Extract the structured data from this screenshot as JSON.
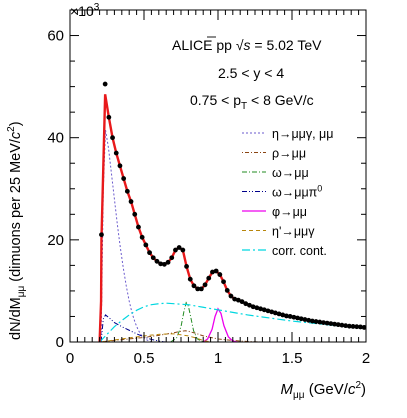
{
  "chart_data": {
    "type": "line",
    "annotations": {
      "experiment": "ALICE pp",
      "energy_prefix": "√",
      "energy_var": "s",
      "energy_value": " = 5.02 TeV",
      "rapidity": "2.5 < y < 4",
      "pt_prefix": "0.75 < p",
      "pt_sub": "T",
      "pt_suffix": " < 8 GeV/c"
    },
    "multiplier_label": "×10",
    "multiplier_exp": "3",
    "xlabel": {
      "main": "M",
      "sub": "μμ",
      "unit_pre": " (GeV/",
      "unit_c": "c",
      "unit_exp": "2",
      "unit_post": ")"
    },
    "ylabel": {
      "text": "dN/dM",
      "sub": "μμ",
      "unit_pre": " (dimuons per 25 MeV/",
      "unit_c": "c",
      "unit_exp": "2",
      "unit_post": ")"
    },
    "xlim": [
      0,
      2
    ],
    "ylim": [
      0,
      65
    ],
    "x_ticks": [
      0,
      0.5,
      1,
      1.5,
      2
    ],
    "x_tick_labels": [
      "0",
      "0.5",
      "1",
      "1.5",
      "2"
    ],
    "y_ticks": [
      0,
      20,
      40,
      60
    ],
    "y_tick_labels": [
      "0",
      "20",
      "40",
      "60"
    ],
    "data_points": {
      "x": [
        0.2125,
        0.2375,
        0.2625,
        0.2875,
        0.3125,
        0.3375,
        0.3625,
        0.3875,
        0.4125,
        0.4375,
        0.4625,
        0.4875,
        0.5125,
        0.5375,
        0.5625,
        0.5875,
        0.6125,
        0.6375,
        0.6625,
        0.6875,
        0.7125,
        0.7375,
        0.7625,
        0.7875,
        0.8125,
        0.8375,
        0.8625,
        0.8875,
        0.9125,
        0.9375,
        0.9625,
        0.9875,
        1.0125,
        1.0375,
        1.0625,
        1.0875,
        1.1125,
        1.1375,
        1.1625,
        1.1875,
        1.2125,
        1.2375,
        1.2625,
        1.2875,
        1.3125,
        1.3375,
        1.3625,
        1.3875,
        1.4125,
        1.4375,
        1.4625,
        1.4875,
        1.5125,
        1.5375,
        1.5625,
        1.5875,
        1.6125,
        1.6375,
        1.6625,
        1.6875,
        1.7125,
        1.7375,
        1.7625,
        1.7875,
        1.8125,
        1.8375,
        1.8625,
        1.8875,
        1.9125,
        1.9375,
        1.9625,
        1.9875
      ],
      "y": [
        21,
        50.5,
        44,
        40,
        37,
        34.5,
        32,
        29.5,
        27.5,
        25,
        22.5,
        20.5,
        19,
        17.5,
        16.5,
        15.8,
        15.3,
        15.2,
        15.6,
        16.5,
        18,
        18.5,
        18,
        14.8,
        12.3,
        11.0,
        10.4,
        10.4,
        11.2,
        12.5,
        13.7,
        13.9,
        13.2,
        11.8,
        10.1,
        9.0,
        8.4,
        8.2,
        7.9,
        7.5,
        7.2,
        6.9,
        6.7,
        6.5,
        6.3,
        6.1,
        5.9,
        5.7,
        5.5,
        5.3,
        5.1,
        5.0,
        4.85,
        4.7,
        4.55,
        4.4,
        4.25,
        4.1,
        4.0,
        3.9,
        3.8,
        3.7,
        3.6,
        3.5,
        3.4,
        3.3,
        3.2,
        3.1,
        3.05,
        3.0,
        2.95,
        2.85
      ],
      "color": "#000000"
    },
    "series": [
      {
        "key": "fit",
        "color": "#e8191b",
        "dash": "",
        "width": 2.4,
        "x": [
          0.2,
          0.21,
          0.2125,
          0.2375,
          0.2625,
          0.2875,
          0.3125,
          0.3375,
          0.3625,
          0.3875,
          0.4125,
          0.4375,
          0.4625,
          0.4875,
          0.5125,
          0.5375,
          0.5625,
          0.5875,
          0.6125,
          0.6375,
          0.6625,
          0.6875,
          0.7125,
          0.7375,
          0.7625,
          0.7875,
          0.8125,
          0.8375,
          0.8625,
          0.8875,
          0.9125,
          0.9375,
          0.9625,
          0.9875,
          1.0125,
          1.0375,
          1.0625,
          1.0875,
          1.1125,
          1.1375,
          1.1625,
          1.1875,
          1.2125,
          1.2375,
          1.2625,
          1.2875,
          1.3125,
          1.3375,
          1.3625,
          1.3875,
          1.4125,
          1.4375,
          1.4625,
          1.4875,
          1.5125,
          1.5375,
          1.5625,
          1.5875,
          1.6125,
          1.6375,
          1.6625,
          1.6875,
          1.7125,
          1.7375,
          1.7625,
          1.7875,
          1.8125,
          1.8375,
          1.8625,
          1.8875,
          1.9125,
          1.9375,
          1.9625,
          1.9875
        ],
        "y": [
          0,
          8,
          20,
          48.5,
          44,
          40,
          37,
          34.5,
          32,
          29.5,
          27.5,
          25,
          22.5,
          20.5,
          19,
          17.5,
          16.5,
          15.8,
          15.3,
          15.2,
          15.6,
          16.5,
          18,
          18.5,
          18,
          14.8,
          12.3,
          11.0,
          10.4,
          10.4,
          11.2,
          12.5,
          13.7,
          13.9,
          13.2,
          11.8,
          10.1,
          9.0,
          8.4,
          8.2,
          7.9,
          7.5,
          7.2,
          6.9,
          6.7,
          6.5,
          6.3,
          6.1,
          5.9,
          5.7,
          5.5,
          5.3,
          5.1,
          5.0,
          4.85,
          4.7,
          4.55,
          4.4,
          4.25,
          4.1,
          4.0,
          3.9,
          3.8,
          3.7,
          3.6,
          3.5,
          3.4,
          3.3,
          3.2,
          3.1,
          3.05,
          3.0,
          2.95,
          2.85
        ]
      },
      {
        "key": "eta",
        "name": "η→μμγ, μμ",
        "color": "#6a5acd",
        "dash": "2,2",
        "width": 1,
        "x": [
          0.21,
          0.225,
          0.24,
          0.26,
          0.28,
          0.3,
          0.32,
          0.34,
          0.36,
          0.38,
          0.4,
          0.42,
          0.44,
          0.46,
          0.48,
          0.5,
          0.52,
          0.54,
          0.55
        ],
        "y": [
          0,
          30,
          41.5,
          38,
          33,
          28,
          23,
          18.5,
          14.5,
          11,
          8,
          5.6,
          3.8,
          2.4,
          1.4,
          0.8,
          0.4,
          0.1,
          0
        ]
      },
      {
        "key": "rho",
        "name": "ρ→μμ",
        "color": "#8b4513",
        "dash": "1,2,4,2",
        "width": 1,
        "x": [
          0.2,
          0.3,
          0.4,
          0.5,
          0.6,
          0.7,
          0.75,
          0.78,
          0.8,
          0.85,
          0.9,
          1.0,
          1.1,
          1.2,
          1.3
        ],
        "y": [
          0,
          0.3,
          0.6,
          0.9,
          1.3,
          1.8,
          2.1,
          2.2,
          2.1,
          1.7,
          1.2,
          0.6,
          0.3,
          0.1,
          0
        ]
      },
      {
        "key": "omega",
        "name": "ω→μμ",
        "color": "#228b22",
        "dash": "5,2,1,2",
        "width": 1,
        "x": [
          0.68,
          0.72,
          0.75,
          0.77,
          0.785,
          0.8,
          0.815,
          0.835,
          0.86,
          0.9
        ],
        "y": [
          0,
          0.8,
          3,
          6,
          7.7,
          7,
          5,
          2.2,
          0.6,
          0
        ]
      },
      {
        "key": "omegadalitz",
        "name": "ω→μμπ",
        "name_sup": "0",
        "color": "#00008b",
        "dash": "5,2,1,2,1,2",
        "width": 1,
        "x": [
          0.21,
          0.225,
          0.24,
          0.27,
          0.3,
          0.35,
          0.4,
          0.45,
          0.5,
          0.55,
          0.6,
          0.63,
          0.65
        ],
        "y": [
          0,
          4.5,
          5.3,
          4.6,
          3.8,
          3,
          2.3,
          1.6,
          1.0,
          0.5,
          0.2,
          0.05,
          0
        ]
      },
      {
        "key": "phi",
        "name": "φ→μμ",
        "color": "#ee00ee",
        "dash": "",
        "width": 1.3,
        "x": [
          0.9,
          0.93,
          0.96,
          0.98,
          1.0,
          1.02,
          1.04,
          1.07,
          1.1,
          1.13
        ],
        "y": [
          0,
          0.6,
          2.5,
          5,
          6.5,
          5.6,
          3.2,
          1.0,
          0.2,
          0
        ]
      },
      {
        "key": "etaprime",
        "name": "η'→μμγ",
        "color": "#b8860b",
        "dash": "4,3",
        "width": 1,
        "x": [
          0.21,
          0.3,
          0.4,
          0.5,
          0.6,
          0.7,
          0.8,
          0.85,
          0.9,
          0.95
        ],
        "y": [
          0,
          0.4,
          0.8,
          1.2,
          1.5,
          1.6,
          1.2,
          0.8,
          0.3,
          0
        ]
      },
      {
        "key": "corr",
        "name": "corr. cont.",
        "color": "#00d7e0",
        "dash": "8,3,2,3",
        "width": 1.2,
        "x": [
          0.2,
          0.25,
          0.3,
          0.35,
          0.4,
          0.45,
          0.5,
          0.55,
          0.6,
          0.65,
          0.7,
          0.8,
          0.9,
          1.0,
          1.1,
          1.2,
          1.3,
          1.4,
          1.5,
          1.6,
          1.7,
          1.8,
          1.9,
          2.0
        ],
        "y": [
          0,
          1.5,
          3,
          4.2,
          5.3,
          6.2,
          6.9,
          7.3,
          7.5,
          7.6,
          7.5,
          7.3,
          6.8,
          6.3,
          5.8,
          5.3,
          4.9,
          4.5,
          4.1,
          3.8,
          3.5,
          3.2,
          3.0,
          2.7
        ]
      }
    ]
  }
}
